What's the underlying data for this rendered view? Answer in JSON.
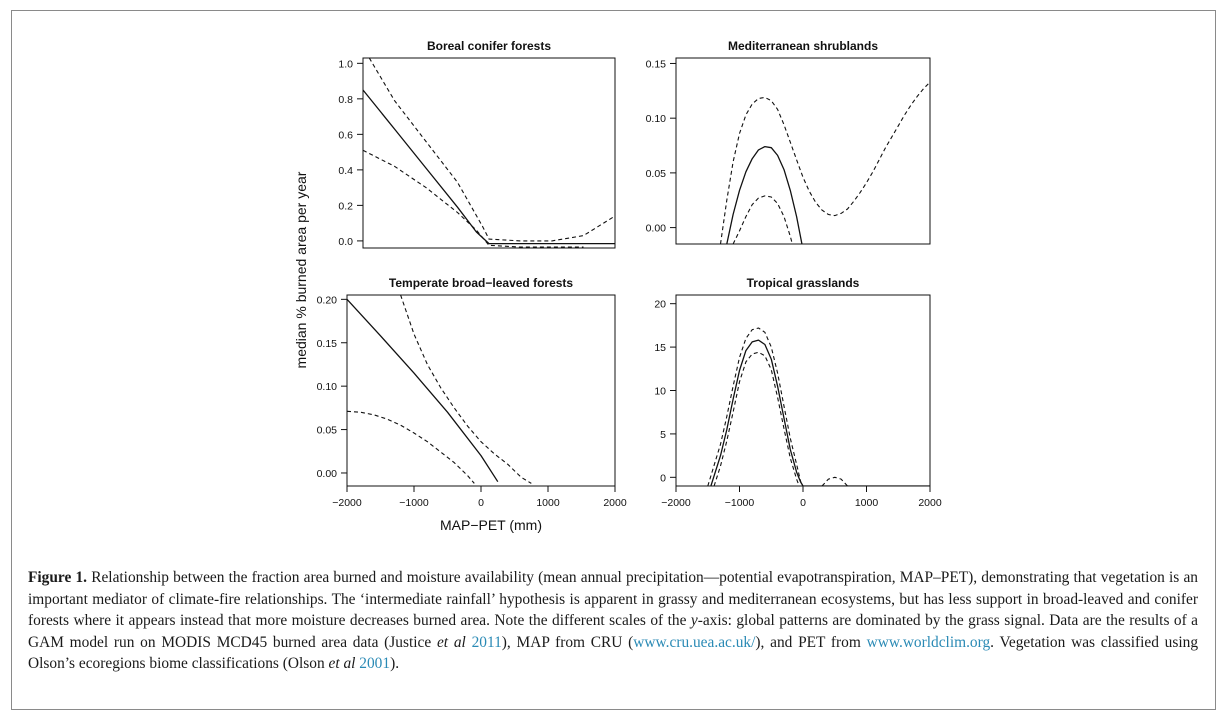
{
  "figure": {
    "shared_xlabel": "MAP−PET (mm)",
    "shared_ylabel": "median % burned area per year"
  },
  "chart_data": [
    {
      "type": "line",
      "title": "Boreal conifer forests",
      "xlim": [
        -2000,
        2000
      ],
      "ylim": [
        -0.04,
        1.03
      ],
      "yticks": [
        0.0,
        0.2,
        0.4,
        0.6,
        0.8,
        1.0
      ],
      "ytick_labels": [
        "0.0",
        "0.2",
        "0.4",
        "0.6",
        "0.8",
        "1.0"
      ],
      "xticks": [],
      "series": [
        {
          "style": "solid",
          "x": [
            -2000,
            -1500,
            -1000,
            -500,
            -200,
            0,
            500,
            1000,
            2000
          ],
          "y": [
            0.85,
            0.63,
            0.41,
            0.19,
            0.05,
            -0.015,
            -0.015,
            -0.015,
            -0.015
          ]
        },
        {
          "style": "dashed",
          "x": [
            -1900,
            -1500,
            -1000,
            -500,
            -100,
            0,
            500,
            1000,
            1500,
            2000
          ],
          "y": [
            1.03,
            0.79,
            0.56,
            0.33,
            0.08,
            0.01,
            0.0,
            0.0,
            0.03,
            0.14
          ]
        },
        {
          "style": "dashed",
          "x": [
            -2000,
            -1500,
            -1000,
            -500,
            -200,
            0,
            500,
            1000,
            1500
          ],
          "y": [
            0.51,
            0.42,
            0.3,
            0.16,
            0.06,
            -0.025,
            -0.035,
            -0.035,
            -0.035
          ]
        }
      ]
    },
    {
      "type": "line",
      "title": "Mediterranean shrublands",
      "xlim": [
        -2000,
        2000
      ],
      "ylim": [
        -0.015,
        0.155
      ],
      "yticks": [
        0.0,
        0.05,
        0.1,
        0.15
      ],
      "ytick_labels": [
        "0.00",
        "0.05",
        "0.10",
        "0.15"
      ],
      "xticks": [],
      "series": [
        {
          "style": "solid",
          "x": [
            -1200,
            -1100,
            -1000,
            -900,
            -800,
            -700,
            -600,
            -500,
            -400,
            -300,
            -200,
            -100,
            0,
            100
          ],
          "y": [
            -0.015,
            0.012,
            0.034,
            0.051,
            0.063,
            0.071,
            0.074,
            0.073,
            0.066,
            0.053,
            0.034,
            0.01,
            -0.02,
            -0.05
          ]
        },
        {
          "style": "dashed",
          "x": [
            -1300,
            -1200,
            -1100,
            -1000,
            -900,
            -800,
            -700,
            -600,
            -500,
            -400,
            -300,
            -200,
            -100,
            0,
            100,
            200,
            300,
            400,
            500,
            600,
            700,
            800,
            900,
            1000,
            1100,
            1200,
            1300,
            1400,
            1500,
            1600,
            1700,
            1800,
            1900,
            2000
          ],
          "y": [
            -0.015,
            0.025,
            0.06,
            0.086,
            0.103,
            0.113,
            0.118,
            0.119,
            0.116,
            0.108,
            0.094,
            0.078,
            0.062,
            0.046,
            0.033,
            0.023,
            0.016,
            0.012,
            0.011,
            0.013,
            0.017,
            0.024,
            0.032,
            0.041,
            0.051,
            0.062,
            0.073,
            0.083,
            0.093,
            0.103,
            0.112,
            0.12,
            0.127,
            0.133
          ]
        },
        {
          "style": "dashed",
          "x": [
            -1100,
            -1000,
            -900,
            -800,
            -700,
            -600,
            -500,
            -400,
            -300,
            -200,
            -100
          ],
          "y": [
            -0.015,
            -0.003,
            0.01,
            0.021,
            0.027,
            0.029,
            0.028,
            0.022,
            0.01,
            -0.008,
            -0.03
          ]
        }
      ]
    },
    {
      "type": "line",
      "title": "Temperate broad−leaved forests",
      "xlim": [
        -2000,
        2000
      ],
      "ylim": [
        -0.015,
        0.205
      ],
      "yticks": [
        0.0,
        0.05,
        0.1,
        0.15,
        0.2
      ],
      "ytick_labels": [
        "0.00",
        "0.05",
        "0.10",
        "0.15",
        "0.20"
      ],
      "xticks": [
        -2000,
        -1000,
        0,
        1000,
        2000
      ],
      "xtick_labels": [
        "−2000",
        "−1000",
        "0",
        "1000",
        "2000"
      ],
      "series": [
        {
          "style": "solid",
          "x": [
            -2000,
            -1500,
            -1000,
            -500,
            0,
            250
          ],
          "y": [
            0.2,
            0.158,
            0.115,
            0.07,
            0.02,
            -0.01
          ]
        },
        {
          "style": "dashed",
          "x": [
            -1200,
            -1000,
            -800,
            -600,
            -400,
            -200,
            0,
            200,
            400,
            600,
            750
          ],
          "y": [
            0.205,
            0.16,
            0.125,
            0.098,
            0.075,
            0.054,
            0.036,
            0.022,
            0.01,
            -0.005,
            -0.012
          ]
        },
        {
          "style": "dashed",
          "x": [
            -2000,
            -1800,
            -1600,
            -1400,
            -1200,
            -1000,
            -800,
            -600,
            -400,
            -200,
            -100
          ],
          "y": [
            0.071,
            0.07,
            0.067,
            0.062,
            0.055,
            0.046,
            0.036,
            0.024,
            0.012,
            -0.003,
            -0.012
          ]
        }
      ]
    },
    {
      "type": "line",
      "title": "Tropical grasslands",
      "xlim": [
        -2000,
        2000
      ],
      "ylim": [
        -1,
        21
      ],
      "yticks": [
        0,
        5,
        10,
        15,
        20
      ],
      "ytick_labels": [
        "0",
        "5",
        "10",
        "15",
        "20"
      ],
      "xticks": [
        -2000,
        -1000,
        0,
        1000,
        2000
      ],
      "xtick_labels": [
        "−2000",
        "−1000",
        "0",
        "1000",
        "2000"
      ],
      "series": [
        {
          "style": "solid",
          "x": [
            -1450,
            -1300,
            -1200,
            -1100,
            -1000,
            -900,
            -800,
            -700,
            -600,
            -500,
            -400,
            -300,
            -200,
            -100,
            -40,
            0,
            300,
            400,
            500,
            600,
            700,
            2000
          ],
          "y": [
            -1,
            2.5,
            5.5,
            9.0,
            12.3,
            14.6,
            15.6,
            15.8,
            15.3,
            13.6,
            10.5,
            6.8,
            3.2,
            0.6,
            -0.5,
            -1,
            -1,
            -1,
            -1,
            -1,
            -1,
            -1
          ]
        },
        {
          "style": "dashed",
          "x": [
            -1500,
            -1300,
            -1200,
            -1100,
            -1000,
            -900,
            -800,
            -700,
            -600,
            -500,
            -400,
            -300,
            -200,
            -100,
            -20
          ],
          "y": [
            -1,
            3.8,
            7.0,
            10.5,
            13.8,
            16.0,
            17.0,
            17.2,
            16.7,
            15.0,
            12.0,
            8.2,
            4.5,
            1.5,
            -1
          ]
        },
        {
          "style": "dashed",
          "x": [
            -1400,
            -1300,
            -1200,
            -1100,
            -1000,
            -900,
            -800,
            -700,
            -600,
            -500,
            -400,
            -300,
            -200,
            -100,
            -60
          ],
          "y": [
            -1,
            1.3,
            4.2,
            7.5,
            11.0,
            13.3,
            14.2,
            14.4,
            14.0,
            12.4,
            9.2,
            5.6,
            2.2,
            -0.2,
            -1
          ]
        },
        {
          "style": "dashed",
          "x": [
            300,
            400,
            500,
            600,
            700
          ],
          "y": [
            -1,
            -0.2,
            0.0,
            -0.2,
            -1
          ]
        },
        {
          "style": "dashed",
          "x": [
            700,
            2000
          ],
          "y": [
            -1,
            -1
          ]
        }
      ]
    }
  ],
  "caption": {
    "label": "Figure 1.",
    "text_1": " Relationship between the fraction area burned and moisture availability (mean annual precipitation—potential evapotranspiration, MAP–PET), demonstrating that vegetation is an important mediator of climate-fire relationships. The ‘intermediate rainfall’ hypothesis is apparent in grassy and mediterranean ecosystems, but has less support in broad-leaved and conifer forests where it appears instead that more moisture decreases burned area. Note the different scales of the ",
    "y_italic": "y",
    "text_2": "-axis: global patterns are dominated by the grass signal. Data are the results of a GAM model run on MODIS MCD45 burned area data (Justice ",
    "etal_1": "et al",
    "year_link_1": " 2011",
    "text_3": "), MAP from CRU (",
    "cru_link": "www.cru.uea.ac.uk/",
    "text_4": "), and PET from ",
    "worldclim_link": "www.worldclim.org",
    "text_5": ". Vegetation was classified using Olson’s ecoregions biome classifications (Olson ",
    "etal_2": "et al",
    "year_link_2": " 2001",
    "text_6": ")."
  }
}
